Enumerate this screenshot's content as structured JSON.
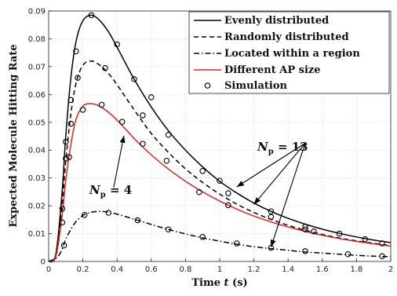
{
  "chart_data": {
    "type": "line",
    "xlabel_prefix": "Time",
    "xlabel_var": "t",
    "xlabel_suffix": "(s)",
    "ylabel": "Expected Molecule Hitting Rate",
    "xlim": [
      0,
      2
    ],
    "ylim": [
      0,
      0.09
    ],
    "xticks": [
      0,
      0.2,
      0.4,
      0.6,
      0.8,
      1,
      1.2,
      1.4,
      1.6,
      1.8,
      2
    ],
    "xtick_labels": [
      "0",
      "0.2",
      "0.4",
      "0.6",
      "0.8",
      "1",
      "1.2",
      "1.4",
      "1.6",
      "1.8",
      "2"
    ],
    "yticks": [
      0,
      0.01,
      0.02,
      0.03,
      0.04,
      0.05,
      0.06,
      0.07,
      0.08,
      0.09
    ],
    "ytick_labels": [
      "0",
      "0.01",
      "0.02",
      "0.03",
      "0.04",
      "0.05",
      "0.06",
      "0.07",
      "0.08",
      "0.09"
    ],
    "grid": true,
    "legend_position": "top-right",
    "series": [
      {
        "name": "Evenly distributed",
        "style": "solid",
        "color": "#000000",
        "x": [
          0,
          0.03,
          0.05,
          0.08,
          0.1,
          0.13,
          0.16,
          0.2,
          0.25,
          0.3,
          0.35,
          0.4,
          0.5,
          0.6,
          0.7,
          0.8,
          0.9,
          1.0,
          1.1,
          1.2,
          1.3,
          1.4,
          1.5,
          1.6,
          1.7,
          1.8,
          1.9,
          2.0
        ],
        "values": [
          0,
          0.0004,
          0.006,
          0.026,
          0.045,
          0.066,
          0.079,
          0.0865,
          0.0885,
          0.0865,
          0.0825,
          0.077,
          0.0655,
          0.0555,
          0.047,
          0.04,
          0.034,
          0.0288,
          0.0246,
          0.021,
          0.018,
          0.0155,
          0.0134,
          0.0116,
          0.0101,
          0.0088,
          0.0077,
          0.0068
        ]
      },
      {
        "name": "Randomly distributed",
        "style": "dashed",
        "color": "#000000",
        "x": [
          0,
          0.03,
          0.05,
          0.08,
          0.1,
          0.13,
          0.16,
          0.2,
          0.25,
          0.3,
          0.35,
          0.4,
          0.5,
          0.6,
          0.7,
          0.8,
          0.9,
          1.0,
          1.1,
          1.2,
          1.3,
          1.4,
          1.5,
          1.6,
          1.7,
          1.8,
          1.9,
          2.0
        ],
        "values": [
          0,
          0.0003,
          0.005,
          0.021,
          0.036,
          0.053,
          0.064,
          0.0705,
          0.072,
          0.0705,
          0.0675,
          0.0635,
          0.0545,
          0.046,
          0.0392,
          0.0333,
          0.0284,
          0.0242,
          0.0206,
          0.0176,
          0.0151,
          0.013,
          0.0112,
          0.0097,
          0.0084,
          0.0074,
          0.0065,
          0.0057
        ]
      },
      {
        "name": "Located within a region",
        "style": "dashdot",
        "color": "#000000",
        "x": [
          0,
          0.05,
          0.08,
          0.1,
          0.15,
          0.2,
          0.25,
          0.3,
          0.35,
          0.4,
          0.5,
          0.6,
          0.7,
          0.8,
          0.9,
          1.0,
          1.1,
          1.2,
          1.3,
          1.4,
          1.5,
          1.6,
          1.7,
          1.8,
          1.9,
          2.0
        ],
        "values": [
          0,
          0.0015,
          0.0045,
          0.008,
          0.0135,
          0.0165,
          0.0177,
          0.018,
          0.0177,
          0.017,
          0.0152,
          0.0133,
          0.0115,
          0.0099,
          0.0085,
          0.0073,
          0.0062,
          0.0053,
          0.0046,
          0.004,
          0.0034,
          0.003,
          0.0026,
          0.0022,
          0.0019,
          0.0017
        ]
      },
      {
        "name": "Different AP size",
        "style": "solid",
        "color": "#e8201e",
        "x": [
          0,
          0.03,
          0.05,
          0.08,
          0.1,
          0.13,
          0.16,
          0.2,
          0.25,
          0.3,
          0.35,
          0.4,
          0.5,
          0.6,
          0.7,
          0.8,
          0.9,
          1.0,
          1.1,
          1.2,
          1.3,
          1.4,
          1.5,
          1.6,
          1.7,
          1.8,
          1.9,
          2.0
        ],
        "values": [
          0,
          0.0002,
          0.004,
          0.017,
          0.029,
          0.042,
          0.051,
          0.0558,
          0.0567,
          0.0557,
          0.0536,
          0.0508,
          0.0442,
          0.0383,
          0.0332,
          0.0288,
          0.025,
          0.0217,
          0.0188,
          0.0163,
          0.0142,
          0.0124,
          0.0108,
          0.0094,
          0.0082,
          0.0072,
          0.0063,
          0.0055
        ]
      }
    ],
    "simulation": {
      "name": "Simulation",
      "points": [
        {
          "x": 0.08,
          "y": 0.019
        },
        {
          "x": 0.1,
          "y": 0.043
        },
        {
          "x": 0.13,
          "y": 0.058
        },
        {
          "x": 0.16,
          "y": 0.0755
        },
        {
          "x": 0.25,
          "y": 0.0885
        },
        {
          "x": 0.4,
          "y": 0.078
        },
        {
          "x": 0.5,
          "y": 0.0655
        },
        {
          "x": 0.6,
          "y": 0.059
        },
        {
          "x": 0.9,
          "y": 0.0325
        },
        {
          "x": 1.0,
          "y": 0.029
        },
        {
          "x": 1.3,
          "y": 0.018
        },
        {
          "x": 1.5,
          "y": 0.0125
        },
        {
          "x": 1.7,
          "y": 0.01
        },
        {
          "x": 1.85,
          "y": 0.008
        },
        {
          "x": 1.95,
          "y": 0.0065
        },
        {
          "x": 0.1,
          "y": 0.037
        },
        {
          "x": 0.13,
          "y": 0.0495
        },
        {
          "x": 0.17,
          "y": 0.066
        },
        {
          "x": 0.33,
          "y": 0.0695
        },
        {
          "x": 0.55,
          "y": 0.0525
        },
        {
          "x": 0.7,
          "y": 0.0455
        },
        {
          "x": 1.05,
          "y": 0.0245
        },
        {
          "x": 1.5,
          "y": 0.0115
        },
        {
          "x": 0.08,
          "y": 0.014
        },
        {
          "x": 0.12,
          "y": 0.0375
        },
        {
          "x": 0.2,
          "y": 0.0545
        },
        {
          "x": 0.31,
          "y": 0.0563
        },
        {
          "x": 0.43,
          "y": 0.0502
        },
        {
          "x": 0.55,
          "y": 0.0423
        },
        {
          "x": 0.69,
          "y": 0.0362
        },
        {
          "x": 0.88,
          "y": 0.0249
        },
        {
          "x": 1.05,
          "y": 0.0202
        },
        {
          "x": 1.3,
          "y": 0.016
        },
        {
          "x": 1.55,
          "y": 0.0108
        },
        {
          "x": 0.09,
          "y": 0.0058
        },
        {
          "x": 0.21,
          "y": 0.0167
        },
        {
          "x": 0.35,
          "y": 0.0175
        },
        {
          "x": 0.52,
          "y": 0.0148
        },
        {
          "x": 0.7,
          "y": 0.0115
        },
        {
          "x": 0.9,
          "y": 0.0088
        },
        {
          "x": 1.1,
          "y": 0.0065
        },
        {
          "x": 1.3,
          "y": 0.0049
        },
        {
          "x": 1.5,
          "y": 0.0037
        },
        {
          "x": 1.75,
          "y": 0.0026
        },
        {
          "x": 1.95,
          "y": 0.0019
        }
      ]
    },
    "annotations": [
      {
        "base": "N",
        "sub": "p",
        "eq": " = 4",
        "x": 0.38,
        "y": 0.0265
      },
      {
        "base": "N",
        "sub": "p",
        "eq": " = 13",
        "x": 1.5,
        "y": 0.0425
      }
    ]
  }
}
